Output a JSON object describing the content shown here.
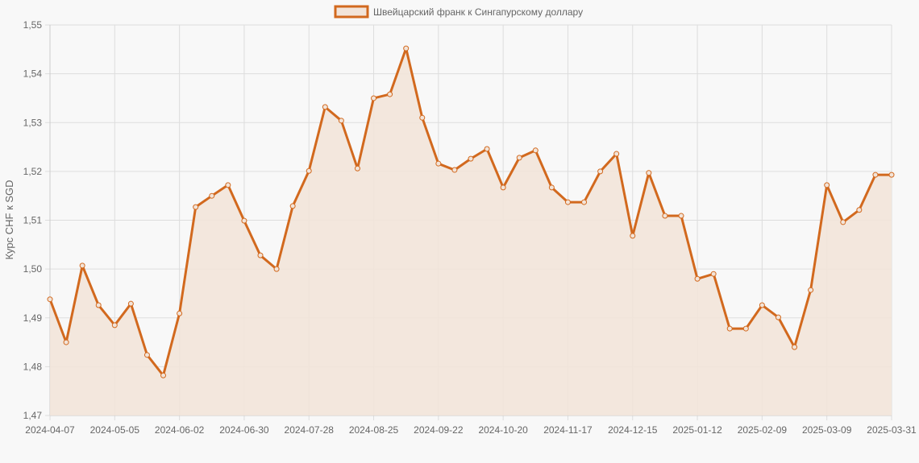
{
  "chart_data": {
    "type": "line",
    "title": "",
    "legend": {
      "label": "Швейцарский франк к Сингапурскому доллару",
      "position": "top"
    },
    "xlabel": "",
    "ylabel": "Курс CHF к SGD",
    "ylim": [
      1.47,
      1.55
    ],
    "yticks": [
      "1,47",
      "1,48",
      "1,49",
      "1,50",
      "1,51",
      "1,52",
      "1,53",
      "1,54",
      "1,55"
    ],
    "xtick_labels": [
      "2024-04-07",
      "2024-05-05",
      "2024-06-02",
      "2024-06-30",
      "2024-07-28",
      "2024-08-25",
      "2024-09-22",
      "2024-10-20",
      "2024-11-17",
      "2024-12-15",
      "2025-01-12",
      "2025-02-09",
      "2025-03-09",
      "2025-03-31"
    ],
    "xtick_indices": [
      0,
      4,
      8,
      12,
      16,
      20,
      24,
      28,
      32,
      36,
      40,
      44,
      48,
      52
    ],
    "grid": true,
    "fill": true,
    "colors": {
      "line": "#d2691e",
      "fill": "#f2e4d9",
      "grid": "#dddddd",
      "axis": "#cccccc"
    },
    "series": [
      {
        "name": "Швейцарский франк к Сингапурскому доллару",
        "values": [
          1.4938,
          1.485,
          1.5007,
          1.4926,
          1.4885,
          1.4929,
          1.4824,
          1.4782,
          1.4909,
          1.5127,
          1.515,
          1.5172,
          1.5099,
          1.5028,
          1.5,
          1.5129,
          1.5201,
          1.5332,
          1.5304,
          1.5206,
          1.535,
          1.5358,
          1.5452,
          1.531,
          1.5216,
          1.5203,
          1.5226,
          1.5246,
          1.5167,
          1.5228,
          1.5243,
          1.5167,
          1.5137,
          1.5137,
          1.52,
          1.5236,
          1.5068,
          1.5197,
          1.5109,
          1.5109,
          1.498,
          1.499,
          1.4878,
          1.4878,
          1.4926,
          1.4901,
          1.484,
          1.4957,
          1.5172,
          1.5096,
          1.5121,
          1.5193,
          1.5193
        ]
      }
    ]
  }
}
